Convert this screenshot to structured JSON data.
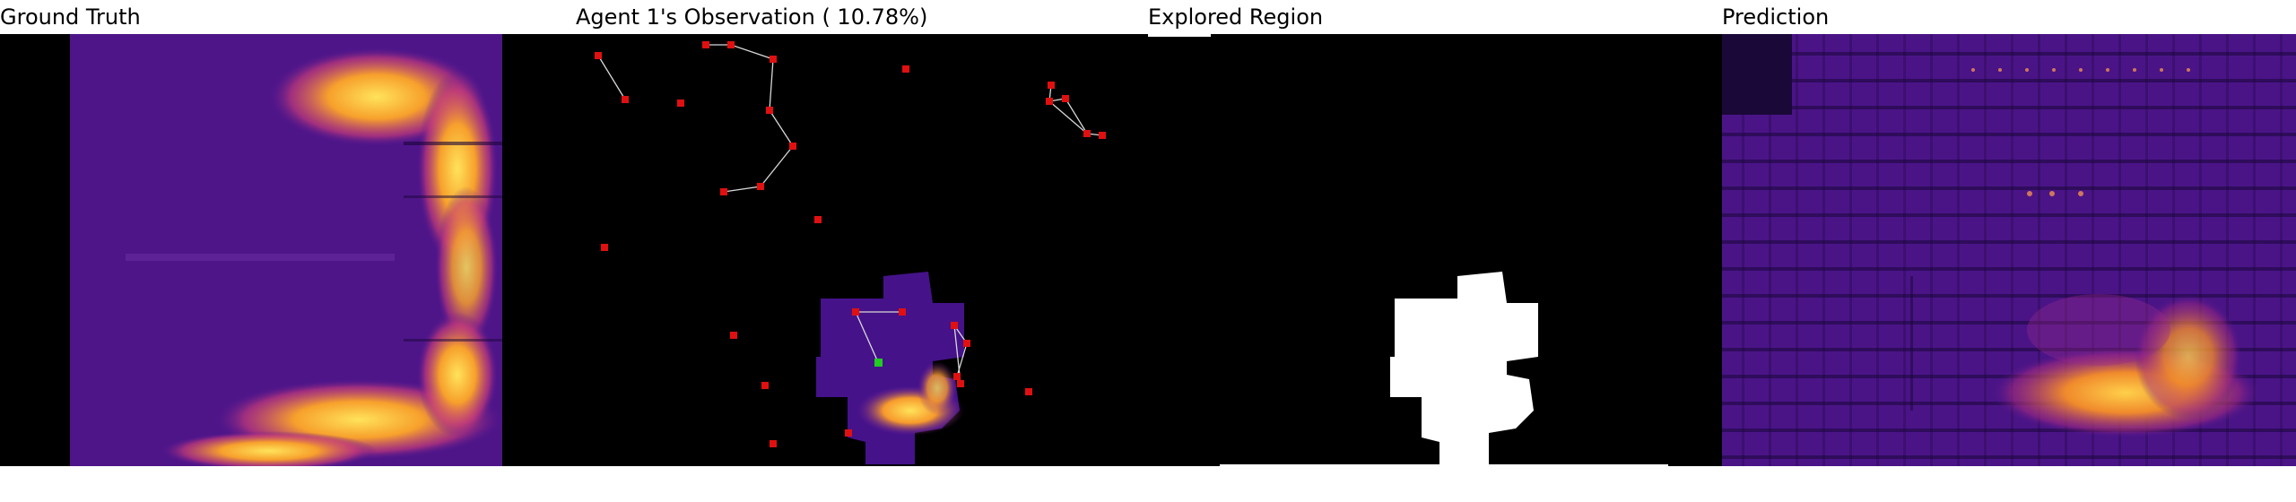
{
  "panels": {
    "ground_truth": {
      "title": "Ground Truth"
    },
    "observation": {
      "title": "Agent 1's Observation ( 10.78%)"
    },
    "explored": {
      "title": "Explored Region"
    },
    "prediction": {
      "title": "Prediction"
    }
  },
  "colors": {
    "background": "#000000",
    "heat_low": "#2a0a5e",
    "heat_mid": "#6a1c9a",
    "heat_high": "#f7b02c",
    "heat_peak": "#ffe35a",
    "agent_marker": "#e01010",
    "current_agent": "#22cc22",
    "trajectory_line": "#d8d8d8",
    "explored_mask": "#ffffff"
  },
  "markers": {
    "agent_icon": "red-agent-icon",
    "current_icon": "green-agent-icon"
  }
}
